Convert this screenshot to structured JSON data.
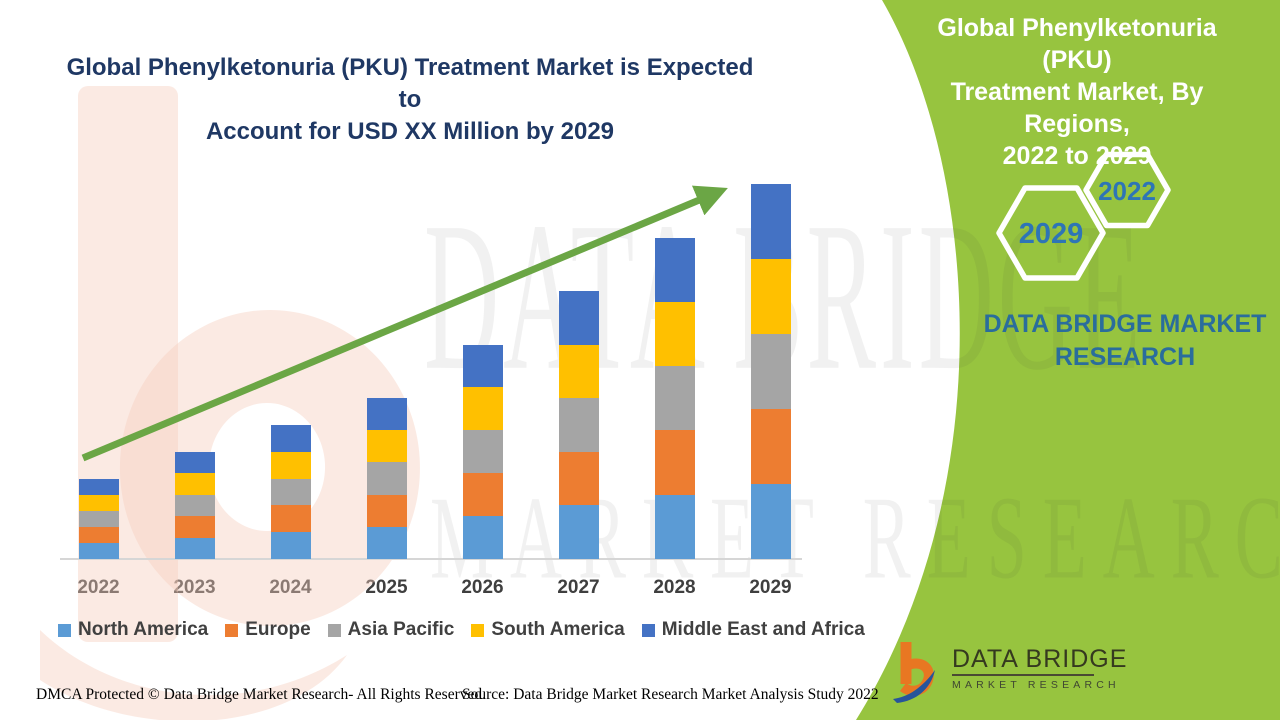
{
  "header": {
    "left_title_lines": [
      "Global Phenylketonuria (PKU) Treatment Market is Expected to",
      "Account for USD XX Million by 2029"
    ]
  },
  "right_panel": {
    "panel_color": "#97C43F",
    "title_lines": [
      "Global Phenylketonuria (PKU)",
      "Treatment Market, By Regions,",
      "2022 to 2029"
    ],
    "hexagon_years": [
      "2022",
      "2029"
    ],
    "brand_name_lines": [
      "DATA BRIDGE MARKET",
      "RESEARCH"
    ]
  },
  "watermark": {
    "line1": "DATA BRIDGE",
    "line2": "MARKET RESEARCH"
  },
  "chart_data": {
    "type": "bar",
    "stacked": true,
    "title": "Global Phenylketonuria (PKU) Treatment Market, By Regions, 2022 to 2029",
    "categories": [
      "2022",
      "2023",
      "2024",
      "2025",
      "2026",
      "2027",
      "2028",
      "2029"
    ],
    "series": [
      {
        "name": "North America",
        "color": "#5B9BD5",
        "values": [
          0.3,
          0.4,
          0.5,
          0.6,
          0.8,
          1.0,
          1.2,
          1.4
        ]
      },
      {
        "name": "Europe",
        "color": "#ED7D31",
        "values": [
          0.3,
          0.4,
          0.5,
          0.6,
          0.8,
          1.0,
          1.2,
          1.4
        ]
      },
      {
        "name": "Asia Pacific",
        "color": "#A5A5A5",
        "values": [
          0.3,
          0.4,
          0.5,
          0.6,
          0.8,
          1.0,
          1.2,
          1.4
        ]
      },
      {
        "name": "South America",
        "color": "#FFC000",
        "values": [
          0.3,
          0.4,
          0.5,
          0.6,
          0.8,
          1.0,
          1.2,
          1.4
        ]
      },
      {
        "name": "Middle East and Africa",
        "color": "#4472C4",
        "values": [
          0.3,
          0.4,
          0.5,
          0.6,
          0.8,
          1.0,
          1.2,
          1.4
        ]
      }
    ],
    "totals": [
      1.5,
      2.0,
      2.5,
      3.0,
      4.0,
      5.0,
      6.0,
      7.0
    ],
    "value_axis_visible": false,
    "values_are_estimates": true,
    "xlabel": "",
    "ylabel": "",
    "grid": false,
    "legend_position": "bottom",
    "trend_arrow": true,
    "arrow_color": "#6BA645"
  },
  "footer": {
    "left": "DMCA Protected © Data Bridge Market Research- All Rights Reserved.",
    "right": "Source: Data Bridge Market Research Market Analysis Study 2022"
  },
  "logo": {
    "name": "DATA BRIDGE",
    "tagline": "MARKET RESEARCH"
  }
}
